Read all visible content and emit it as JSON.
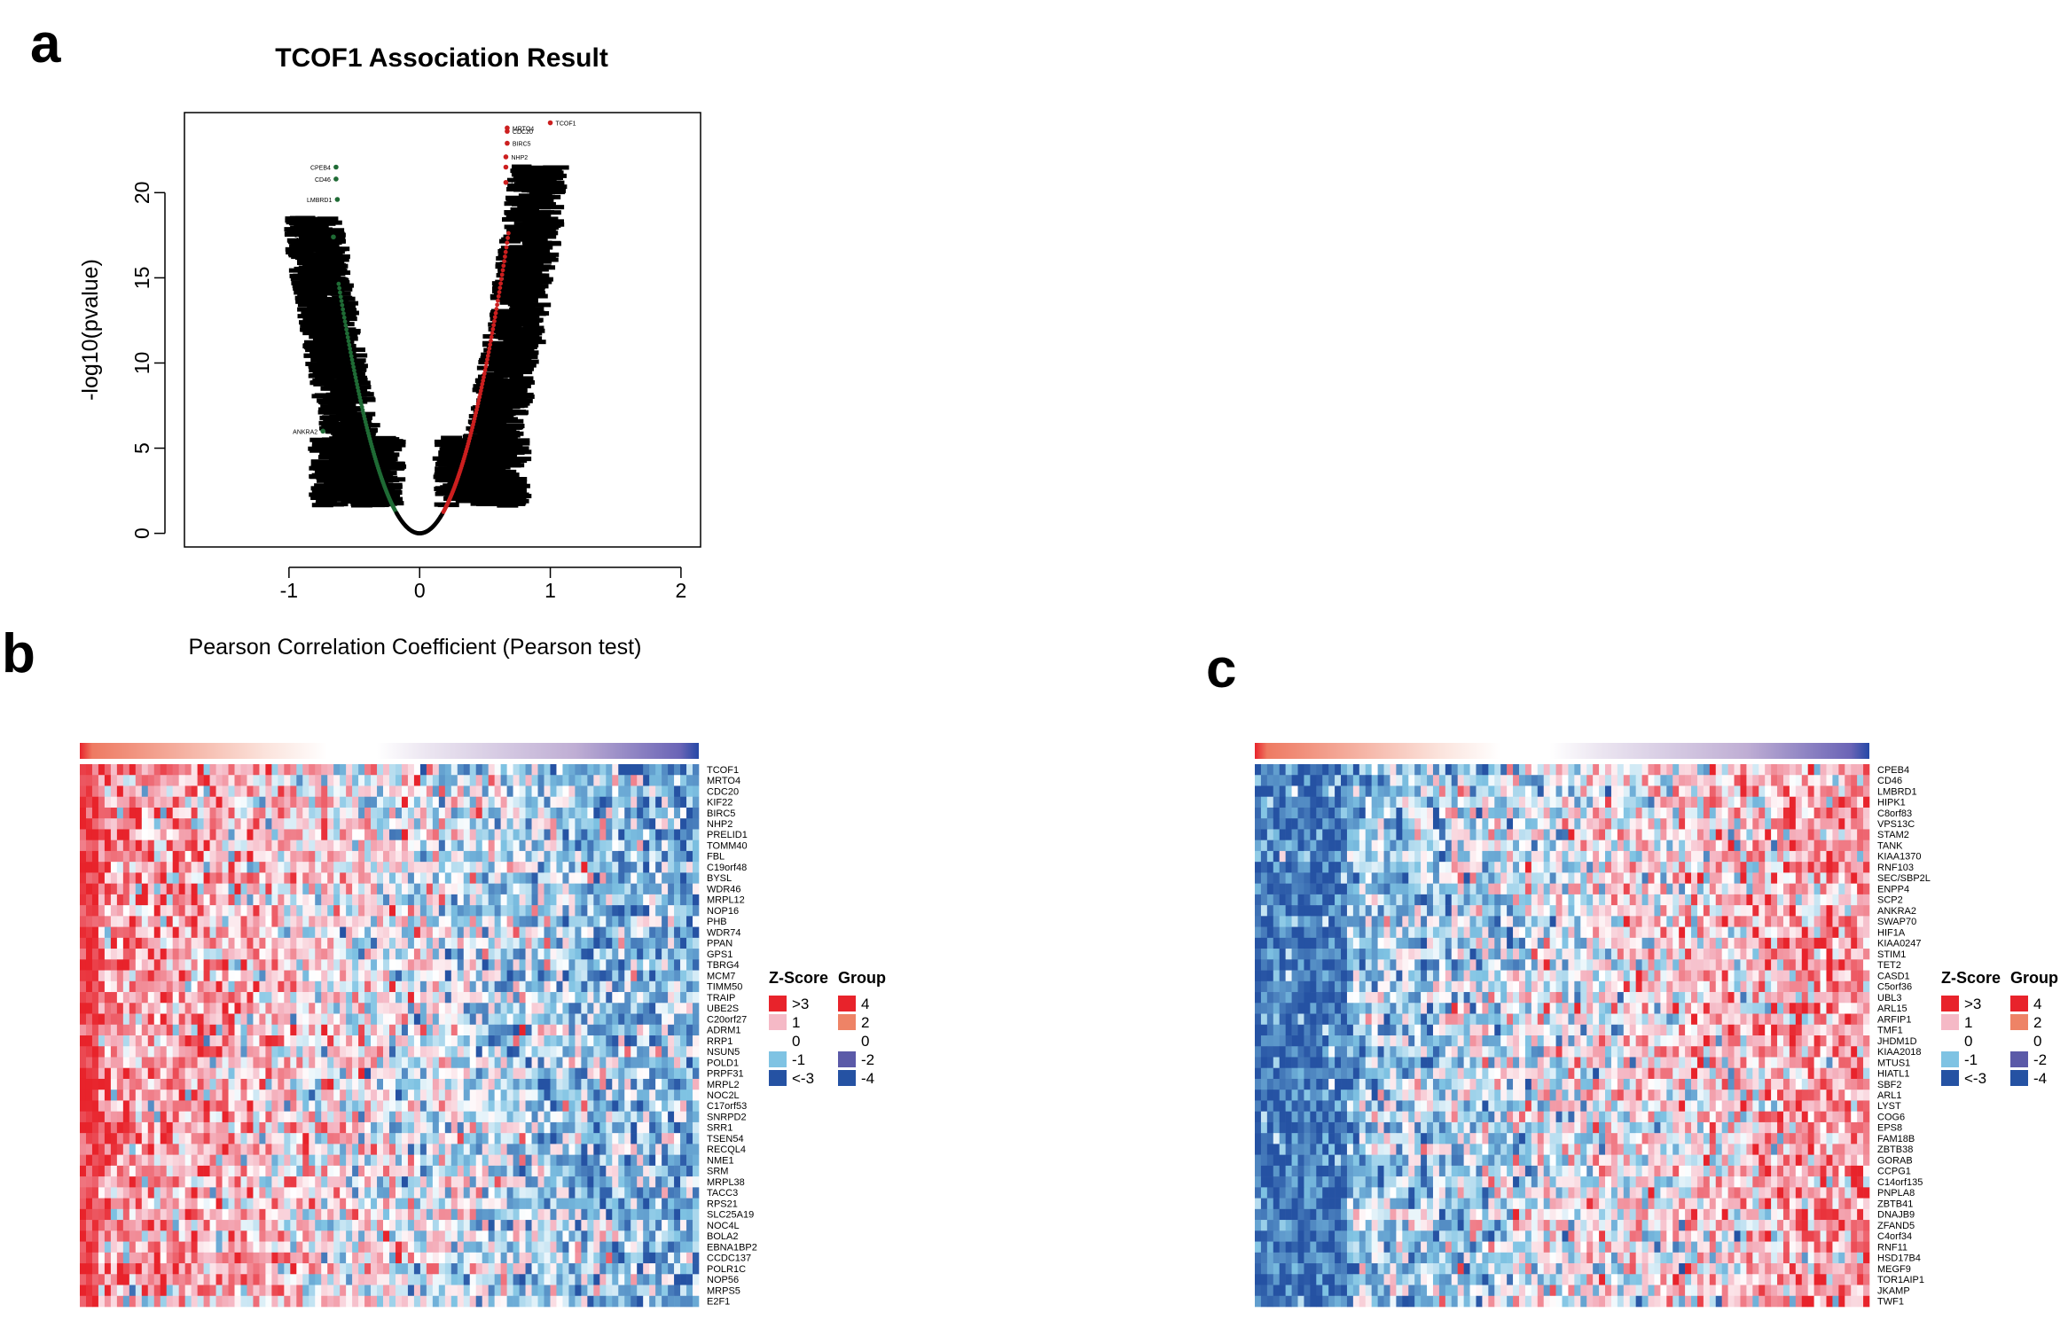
{
  "panels": {
    "a": "a",
    "b": "b",
    "c": "c"
  },
  "chart_data": [
    {
      "type": "scatter",
      "title": "TCOF1 Association Result",
      "xlabel": "Pearson Correlation Coefficient (Pearson test)",
      "ylabel": "-log10(pvalue)",
      "xlim": [
        -1.8,
        2.15
      ],
      "ylim": [
        -0.8,
        24.7
      ],
      "x_ticks": [
        -1,
        0,
        1,
        2
      ],
      "y_ticks": [
        0,
        5,
        10,
        15,
        20
      ],
      "colors": {
        "positive": "#cc1f1f",
        "negative": "#1f6b35",
        "other": "#000000"
      },
      "labeled_points": [
        {
          "label": "TCOF1",
          "x": 1.0,
          "y": 24.1
        },
        {
          "label": "MRTO4",
          "x": 0.67,
          "y": 23.8
        },
        {
          "label": "CDC20",
          "x": 0.67,
          "y": 23.6
        },
        {
          "label": "BIRC5",
          "x": 0.67,
          "y": 22.9
        },
        {
          "label": "NHP2",
          "x": 0.66,
          "y": 22.1
        },
        {
          "label": "FBL",
          "x": 0.66,
          "y": 21.5
        },
        {
          "label": "C19orf48",
          "x": 0.66,
          "y": 20.6
        },
        {
          "label": "CPEB4",
          "x": -0.64,
          "y": 21.5
        },
        {
          "label": "CD46",
          "x": -0.64,
          "y": 20.8
        },
        {
          "label": "LMBRD1",
          "x": -0.63,
          "y": 19.6
        },
        {
          "label": "SEC/SBP2L",
          "x": -0.66,
          "y": 17.4
        },
        {
          "label": "ANKRA2",
          "x": -0.74,
          "y": 6.0
        }
      ]
    },
    {
      "type": "heatmap",
      "genes": [
        "TCOF1",
        "MRTO4",
        "CDC20",
        "KIF22",
        "BIRC5",
        "NHP2",
        "PRELID1",
        "TOMM40",
        "FBL",
        "C19orf48",
        "BYSL",
        "WDR46",
        "MRPL12",
        "NOP16",
        "PHB",
        "WDR74",
        "PPAN",
        "GPS1",
        "TBRG4",
        "MCM7",
        "TIMM50",
        "TRAIP",
        "UBE2S",
        "C20orf27",
        "ADRM1",
        "RRP1",
        "NSUN5",
        "POLD1",
        "PRPF31",
        "MRPL2",
        "NOC2L",
        "C17orf53",
        "SNRPD2",
        "SRR1",
        "TSEN54",
        "RECQL4",
        "NME1",
        "SRM",
        "MRPL38",
        "TACC3",
        "RPS21",
        "SLC25A19",
        "NOC4L",
        "BOLA2",
        "EBNA1BP2",
        "CCDC137",
        "POLR1C",
        "NOP56",
        "MRPS5",
        "E2F1"
      ],
      "direction": "positive"
    },
    {
      "type": "heatmap",
      "genes": [
        "CPEB4",
        "CD46",
        "LMBRD1",
        "HIPK1",
        "C8orf83",
        "VPS13C",
        "STAM2",
        "TANK",
        "KIAA1370",
        "RNF103",
        "SEC/SBP2L",
        "ENPP4",
        "SCP2",
        "ANKRA2",
        "SWAP70",
        "HIF1A",
        "KIAA0247",
        "STIM1",
        "TET2",
        "CASD1",
        "C5orf36",
        "UBL3",
        "ARL15",
        "ARFIP1",
        "TMF1",
        "JHDM1D",
        "KIAA2018",
        "MTUS1",
        "HIATL1",
        "SBF2",
        "ARL1",
        "LYST",
        "COG6",
        "EPS8",
        "FAM18B",
        "ZBTB38",
        "GORAB",
        "CCPG1",
        "C14orf135",
        "PNPLA8",
        "ZBTB41",
        "DNAJB9",
        "ZFAND5",
        "C4orf34",
        "RNF11",
        "HSD17B4",
        "MEGF9",
        "TOR1AIP1",
        "JKAMP",
        "TWF1"
      ],
      "direction": "negative"
    }
  ],
  "legend": {
    "zscore_title": "Z-Score",
    "group_title": "Group",
    "zscore_items": [
      {
        "label": ">3",
        "color": "#e8232b"
      },
      {
        "label": "1",
        "color": "#f5b9c6"
      },
      {
        "label": "0",
        "color": "#ffffff"
      },
      {
        "label": "-1",
        "color": "#7fc3e3"
      },
      {
        "label": "<-3",
        "color": "#2552a3"
      }
    ],
    "group_items": [
      {
        "label": "4",
        "color": "#e8232b"
      },
      {
        "label": "2",
        "color": "#ee8366"
      },
      {
        "label": "0",
        "color": "#ffffff"
      },
      {
        "label": "-2",
        "color": "#5b5aa8"
      },
      {
        "label": "-4",
        "color": "#2552a3"
      }
    ]
  }
}
